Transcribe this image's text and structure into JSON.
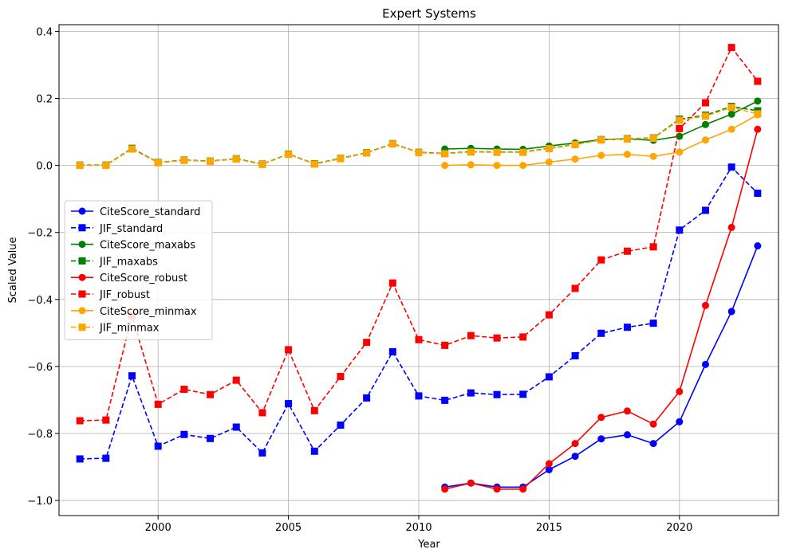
{
  "chart_data": {
    "type": "line",
    "title": "Expert Systems",
    "xlabel": "Year",
    "ylabel": "Scaled Value",
    "xlim": [
      1996.2,
      2023.8
    ],
    "ylim": [
      -1.045,
      0.42
    ],
    "xticks": [
      2000,
      2005,
      2010,
      2015,
      2020
    ],
    "yticks": [
      -1.0,
      -0.8,
      -0.6,
      -0.4,
      -0.2,
      0.0,
      0.2,
      0.4
    ],
    "ytick_labels": [
      "−1.0",
      "−0.8",
      "−0.6",
      "−0.4",
      "−0.2",
      "0.0",
      "0.2",
      "0.4"
    ],
    "grid": true,
    "legend_position": "center-left",
    "series": [
      {
        "name": "CiteScore_standard",
        "color": "#0000ff",
        "linestyle": "solid",
        "marker": "circle",
        "x": [
          2011,
          2012,
          2013,
          2014,
          2015,
          2016,
          2017,
          2018,
          2019,
          2020,
          2021,
          2022,
          2023
        ],
        "y": [
          -0.96,
          -0.948,
          -0.96,
          -0.96,
          -0.908,
          -0.868,
          -0.816,
          -0.804,
          -0.83,
          -0.765,
          -0.594,
          -0.436,
          -0.24
        ]
      },
      {
        "name": "JIF_standard",
        "color": "#0000ff",
        "linestyle": "dashed",
        "marker": "square",
        "x": [
          1997,
          1998,
          1999,
          2000,
          2001,
          2002,
          2003,
          2004,
          2005,
          2006,
          2007,
          2008,
          2009,
          2010,
          2011,
          2012,
          2013,
          2014,
          2015,
          2016,
          2017,
          2018,
          2019,
          2020,
          2021,
          2022,
          2023
        ],
        "y": [
          -0.876,
          -0.874,
          -0.628,
          -0.838,
          -0.803,
          -0.815,
          -0.781,
          -0.858,
          -0.711,
          -0.853,
          -0.775,
          -0.694,
          -0.556,
          -0.688,
          -0.701,
          -0.679,
          -0.684,
          -0.683,
          -0.631,
          -0.568,
          -0.501,
          -0.483,
          -0.471,
          -0.193,
          -0.134,
          -0.005,
          -0.083
        ]
      },
      {
        "name": "CiteScore_maxabs",
        "color": "#008000",
        "linestyle": "solid",
        "marker": "circle",
        "x": [
          2011,
          2012,
          2013,
          2014,
          2015,
          2016,
          2017,
          2018,
          2019,
          2020,
          2021,
          2022,
          2023
        ],
        "y": [
          0.049,
          0.051,
          0.049,
          0.048,
          0.058,
          0.067,
          0.077,
          0.079,
          0.075,
          0.087,
          0.122,
          0.153,
          0.192
        ]
      },
      {
        "name": "JIF_maxabs",
        "color": "#008000",
        "linestyle": "dashed",
        "marker": "square",
        "x": [
          1997,
          1998,
          1999,
          2000,
          2001,
          2002,
          2003,
          2004,
          2005,
          2006,
          2007,
          2008,
          2009,
          2010,
          2011,
          2012,
          2013,
          2014,
          2015,
          2016,
          2017,
          2018,
          2019,
          2020,
          2021,
          2022,
          2023
        ],
        "y": [
          0.001,
          0.001,
          0.051,
          0.009,
          0.016,
          0.013,
          0.02,
          0.004,
          0.034,
          0.005,
          0.021,
          0.038,
          0.065,
          0.039,
          0.036,
          0.041,
          0.04,
          0.04,
          0.051,
          0.063,
          0.077,
          0.08,
          0.082,
          0.138,
          0.15,
          0.176,
          0.163
        ]
      },
      {
        "name": "CiteScore_robust",
        "color": "#ff0000",
        "linestyle": "solid",
        "marker": "circle",
        "x": [
          2011,
          2012,
          2013,
          2014,
          2015,
          2016,
          2017,
          2018,
          2019,
          2020,
          2021,
          2022,
          2023
        ],
        "y": [
          -0.966,
          -0.948,
          -0.966,
          -0.966,
          -0.89,
          -0.83,
          -0.752,
          -0.733,
          -0.772,
          -0.675,
          -0.418,
          -0.185,
          0.108
        ]
      },
      {
        "name": "JIF_robust",
        "color": "#ff0000",
        "linestyle": "dashed",
        "marker": "square",
        "x": [
          1997,
          1998,
          1999,
          2000,
          2001,
          2002,
          2003,
          2004,
          2005,
          2006,
          2007,
          2008,
          2009,
          2010,
          2011,
          2012,
          2013,
          2014,
          2015,
          2016,
          2017,
          2018,
          2019,
          2020,
          2021,
          2022,
          2023
        ],
        "y": [
          -0.762,
          -0.76,
          -0.448,
          -0.713,
          -0.668,
          -0.684,
          -0.641,
          -0.738,
          -0.55,
          -0.732,
          -0.63,
          -0.528,
          -0.351,
          -0.52,
          -0.537,
          -0.508,
          -0.515,
          -0.512,
          -0.446,
          -0.367,
          -0.282,
          -0.256,
          -0.243,
          0.11,
          0.187,
          0.352,
          0.251
        ]
      },
      {
        "name": "CiteScore_minmax",
        "color": "#ffa500",
        "linestyle": "solid",
        "marker": "circle",
        "x": [
          2011,
          2012,
          2013,
          2014,
          2015,
          2016,
          2017,
          2018,
          2019,
          2020,
          2021,
          2022,
          2023
        ],
        "y": [
          0.0,
          0.002,
          0.0,
          0.0,
          0.01,
          0.019,
          0.03,
          0.033,
          0.027,
          0.04,
          0.076,
          0.108,
          0.151
        ]
      },
      {
        "name": "JIF_minmax",
        "color": "#ffa500",
        "linestyle": "dashed",
        "marker": "square",
        "x": [
          1997,
          1998,
          1999,
          2000,
          2001,
          2002,
          2003,
          2004,
          2005,
          2006,
          2007,
          2008,
          2009,
          2010,
          2011,
          2012,
          2013,
          2014,
          2015,
          2016,
          2017,
          2018,
          2019,
          2020,
          2021,
          2022,
          2023
        ],
        "y": [
          0.0,
          0.0,
          0.049,
          0.008,
          0.015,
          0.012,
          0.019,
          0.003,
          0.033,
          0.004,
          0.02,
          0.037,
          0.064,
          0.038,
          0.035,
          0.04,
          0.039,
          0.039,
          0.05,
          0.062,
          0.076,
          0.079,
          0.081,
          0.135,
          0.147,
          0.173,
          0.154
        ]
      }
    ]
  }
}
